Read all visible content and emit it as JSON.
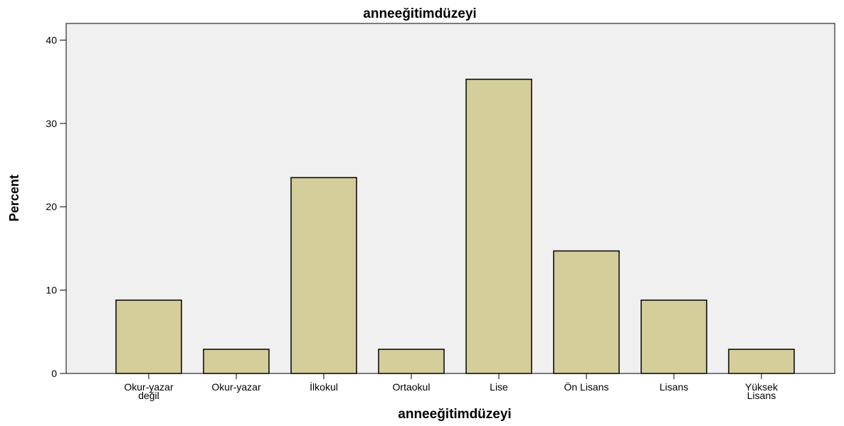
{
  "chart_data": {
    "type": "bar",
    "title": "anneeğitimdüzeyi",
    "xlabel": "anneeğitimdüzeyi",
    "ylabel": "Percent",
    "categories": [
      [
        "Okur-yazar",
        "değil"
      ],
      [
        "Okur-yazar"
      ],
      [
        "İlkokul"
      ],
      [
        "Ortaokul"
      ],
      [
        "Lise"
      ],
      [
        "Ön Lisans"
      ],
      [
        "Lisans"
      ],
      [
        "Yüksek",
        "Lisans"
      ]
    ],
    "values": [
      8.8,
      2.9,
      23.5,
      2.9,
      35.3,
      14.7,
      8.8,
      2.9
    ],
    "ylim": [
      0,
      42
    ],
    "yticks": [
      0,
      10,
      20,
      30,
      40
    ],
    "grid": false,
    "colors": {
      "plot_background": "#f0f0f0",
      "bar_fill": "#d3ce9a",
      "bar_stroke": "#000000",
      "axis": "#000000"
    }
  }
}
